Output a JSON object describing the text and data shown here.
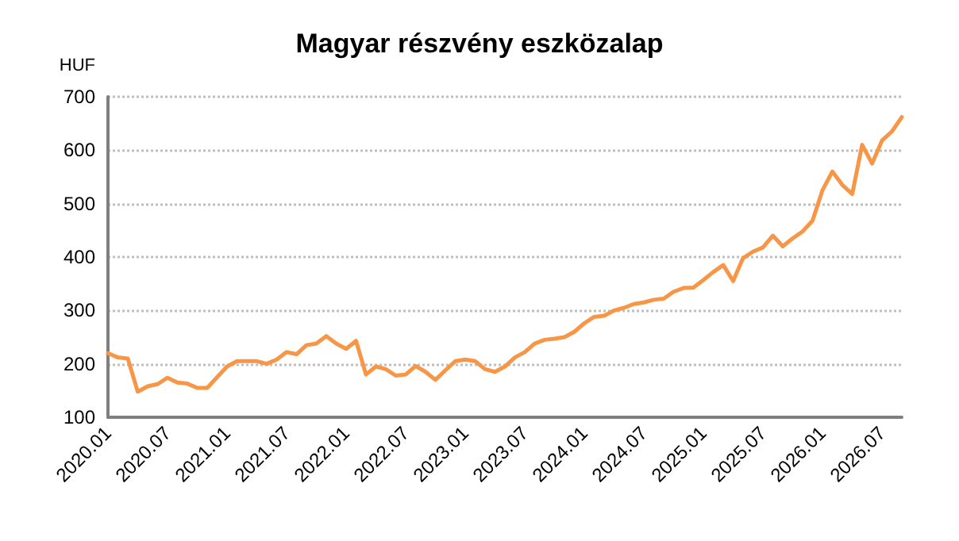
{
  "chart_data": {
    "type": "line",
    "title": "Magyar részvény eszközalap",
    "ylabel": "HUF",
    "categories": [
      "2020.01",
      null,
      null,
      null,
      null,
      null,
      "2020.07",
      null,
      null,
      null,
      null,
      null,
      "2021.01",
      null,
      null,
      null,
      null,
      null,
      "2021.07",
      null,
      null,
      null,
      null,
      null,
      "2022.01",
      null,
      null,
      null,
      null,
      null,
      "2022.07",
      null,
      null,
      null,
      null,
      null,
      "2023.01",
      null,
      null,
      null,
      null,
      null,
      "2023.07",
      null,
      null,
      null,
      null,
      null,
      "2024.01",
      null,
      null,
      null,
      null,
      null,
      "2024.07",
      null,
      null,
      null,
      null,
      null,
      "2025.01",
      null,
      null,
      null,
      null,
      null,
      "2025.07",
      null,
      null,
      null,
      null,
      null,
      "2026.01",
      null,
      null,
      null,
      null,
      null,
      "2026.07",
      null,
      null
    ],
    "series": [
      {
        "color": "#f79646",
        "values": [
          220,
          212,
          210,
          148,
          158,
          162,
          174,
          165,
          163,
          155,
          155,
          175,
          195,
          205,
          205,
          205,
          200,
          208,
          222,
          218,
          235,
          238,
          252,
          238,
          228,
          243,
          180,
          195,
          190,
          178,
          180,
          196,
          185,
          170,
          188,
          205,
          208,
          205,
          190,
          185,
          195,
          212,
          222,
          238,
          245,
          247,
          250,
          260,
          276,
          288,
          290,
          300,
          305,
          312,
          315,
          320,
          322,
          335,
          342,
          343,
          357,
          372,
          385,
          355,
          398,
          410,
          418,
          440,
          420,
          435,
          448,
          468,
          525,
          560,
          535,
          518,
          610,
          575,
          618,
          635,
          662
        ]
      }
    ],
    "ylim": [
      100,
      700
    ],
    "yticks": [
      100,
      200,
      300,
      400,
      500,
      600,
      700
    ],
    "grid": "y",
    "marker": "none",
    "line_style": "solid"
  }
}
